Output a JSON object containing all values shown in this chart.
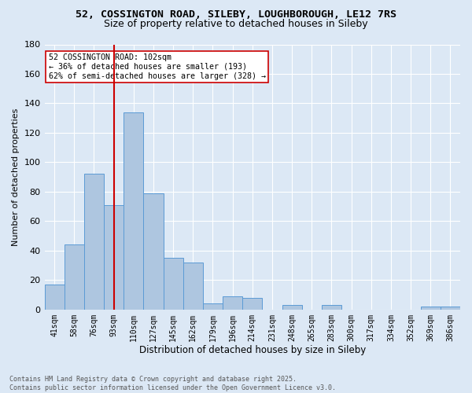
{
  "title1": "52, COSSINGTON ROAD, SILEBY, LOUGHBOROUGH, LE12 7RS",
  "title2": "Size of property relative to detached houses in Sileby",
  "xlabel": "Distribution of detached houses by size in Sileby",
  "ylabel": "Number of detached properties",
  "categories": [
    "41sqm",
    "58sqm",
    "76sqm",
    "93sqm",
    "110sqm",
    "127sqm",
    "145sqm",
    "162sqm",
    "179sqm",
    "196sqm",
    "214sqm",
    "231sqm",
    "248sqm",
    "265sqm",
    "283sqm",
    "300sqm",
    "317sqm",
    "334sqm",
    "352sqm",
    "369sqm",
    "386sqm"
  ],
  "values": [
    17,
    44,
    92,
    71,
    134,
    79,
    35,
    32,
    4,
    9,
    8,
    0,
    3,
    0,
    3,
    0,
    0,
    0,
    0,
    2,
    2
  ],
  "bar_color": "#aec6e0",
  "bar_edge_color": "#5b9bd5",
  "bg_color": "#dce8f5",
  "grid_color": "#ffffff",
  "vline_color": "#cc0000",
  "annotation_text": "52 COSSINGTON ROAD: 102sqm\n← 36% of detached houses are smaller (193)\n62% of semi-detached houses are larger (328) →",
  "annotation_box_color": "#ffffff",
  "annotation_box_edge": "#cc0000",
  "footer_text": "Contains HM Land Registry data © Crown copyright and database right 2025.\nContains public sector information licensed under the Open Government Licence v3.0.",
  "ylim": [
    0,
    180
  ],
  "yticks": [
    0,
    20,
    40,
    60,
    80,
    100,
    120,
    140,
    160,
    180
  ],
  "title1_fontsize": 9.5,
  "title2_fontsize": 9.0,
  "ylabel_fontsize": 8,
  "xlabel_fontsize": 8.5,
  "tick_fontsize": 7,
  "footer_fontsize": 6.0,
  "annot_fontsize": 7.2
}
